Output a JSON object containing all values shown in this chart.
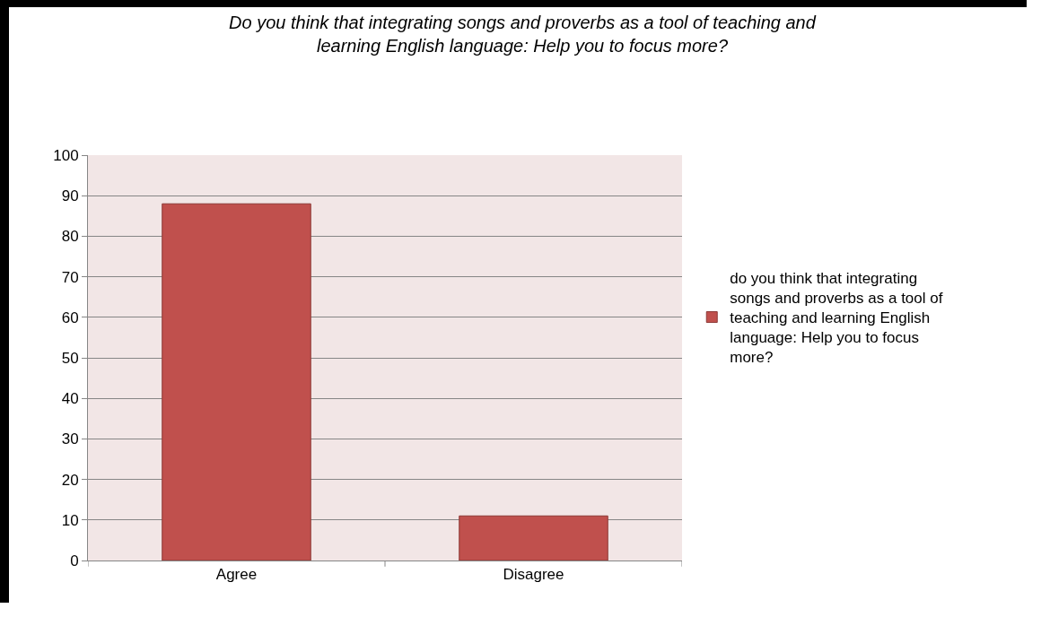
{
  "chart_data": {
    "type": "bar",
    "title": "Do you think that integrating songs and proverbs as a tool of teaching and learning English language: Help you to focus more?",
    "categories": [
      "Agree",
      "Disagree"
    ],
    "series": [
      {
        "name": "do you think that integrating songs and proverbs as a tool of teaching and learning English language: Help you to focus more?",
        "color": "#c0504d",
        "values": [
          88,
          11
        ]
      }
    ],
    "ylim": [
      0,
      100
    ],
    "yticks": [
      0,
      10,
      20,
      30,
      40,
      50,
      60,
      70,
      80,
      90,
      100
    ],
    "grid": "y",
    "legend": "right"
  }
}
